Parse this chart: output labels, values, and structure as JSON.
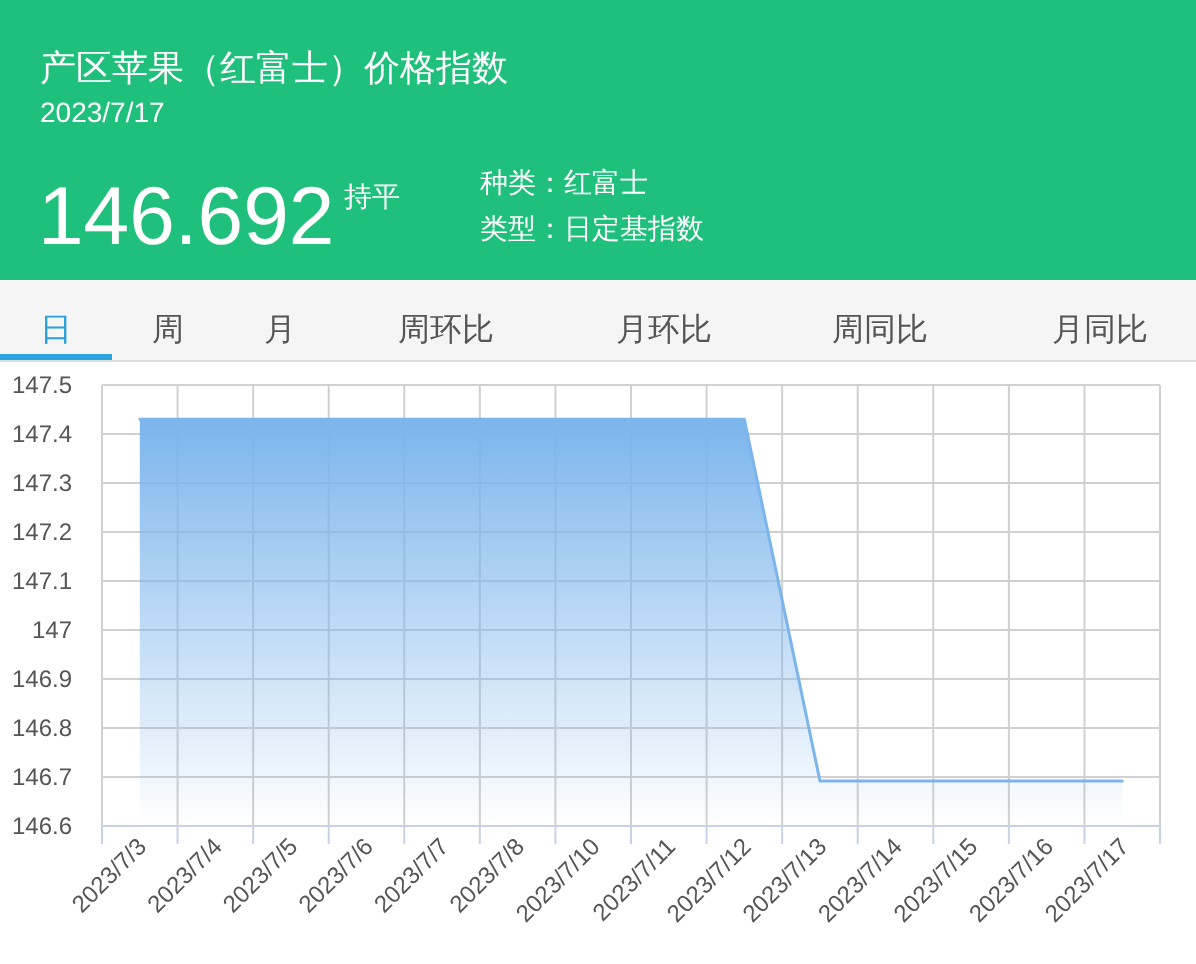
{
  "chart_data": {
    "type": "area",
    "title": "产区苹果（红富士）价格指数",
    "subtitle": "2023/7/17",
    "annotations": [
      "146.692",
      "持平",
      "种类：红富士",
      "类型：日定基指数",
      "日",
      "周",
      "月",
      "周环比",
      "月环比",
      "周同比",
      "月同比"
    ],
    "categories": [
      "2023/7/3",
      "2023/7/4",
      "2023/7/5",
      "2023/7/6",
      "2023/7/7",
      "2023/7/8",
      "2023/7/10",
      "2023/7/11",
      "2023/7/12",
      "2023/7/13",
      "2023/7/14",
      "2023/7/15",
      "2023/7/16",
      "2023/7/17"
    ],
    "series": [
      {
        "color": "#7cb5ec",
        "values": [
          147.43,
          147.43,
          147.43,
          147.43,
          147.43,
          147.43,
          147.43,
          147.43,
          147.43,
          146.692,
          146.692,
          146.692,
          146.692,
          146.692
        ]
      }
    ],
    "ylim": [
      146.6,
      147.5
    ],
    "yticks": [
      146.6,
      146.7,
      146.8,
      146.9,
      147,
      147.1,
      147.2,
      147.3,
      147.4,
      147.5
    ],
    "grid": true
  }
}
